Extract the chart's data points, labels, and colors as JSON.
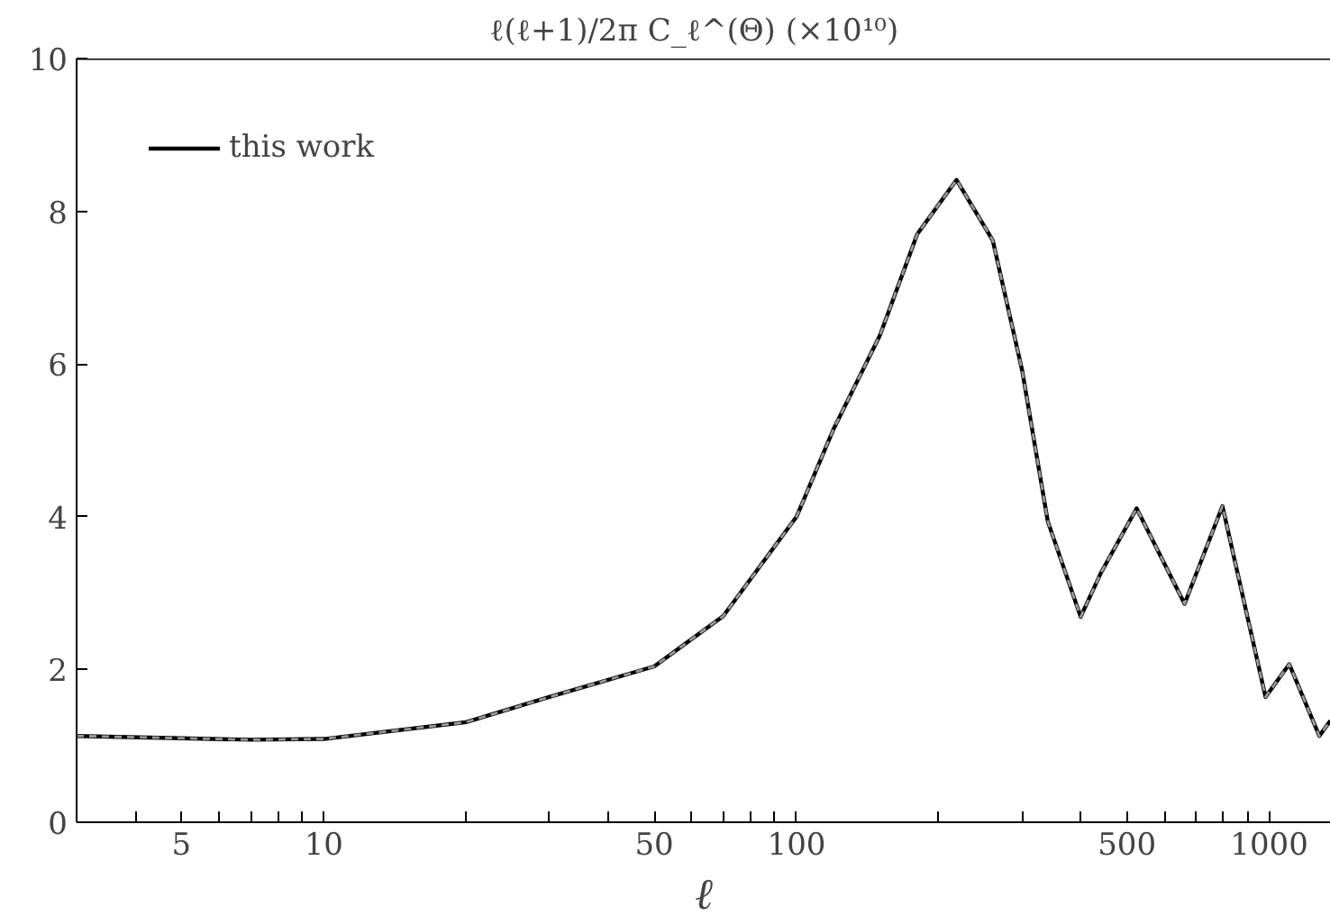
{
  "chart_data": {
    "type": "line",
    "title": "ℓ(ℓ+1)/2π C_ℓ^(Θ)   (×10¹⁰)",
    "xlabel": "ℓ",
    "log": "x",
    "xlim": [
      3,
      1350
    ],
    "ylim": [
      0,
      10
    ],
    "xticks": [
      {
        "value": 4,
        "label": null
      },
      5,
      {
        "value": 6,
        "label": null
      },
      {
        "value": 7,
        "label": null
      },
      {
        "value": 8,
        "label": null
      },
      {
        "value": 9,
        "label": null
      },
      10,
      {
        "value": 20,
        "label": null
      },
      {
        "value": 30,
        "label": null
      },
      {
        "value": 40,
        "label": null
      },
      50,
      {
        "value": 60,
        "label": null
      },
      {
        "value": 70,
        "label": null
      },
      {
        "value": 80,
        "label": null
      },
      {
        "value": 90,
        "label": null
      },
      100,
      {
        "value": 200,
        "label": null
      },
      {
        "value": 300,
        "label": null
      },
      {
        "value": 400,
        "label": null
      },
      500,
      {
        "value": 600,
        "label": null
      },
      {
        "value": 700,
        "label": null
      },
      {
        "value": 800,
        "label": null
      },
      {
        "value": 900,
        "label": null
      },
      1000
    ],
    "yticks": [
      0,
      2,
      4,
      6,
      8,
      10
    ],
    "grid": false,
    "legend": "top left",
    "x": [
      3,
      5,
      7,
      10,
      20,
      30,
      50,
      70,
      100,
      120,
      150,
      180,
      218,
      260,
      300,
      340,
      399,
      440,
      524,
      662,
      796,
      982,
      1102,
      1276,
      1346
    ],
    "series": [
      {
        "name": "this work",
        "color": "#000000",
        "line_style": "solid",
        "values": [
          1.13,
          1.1,
          1.08,
          1.09,
          1.31,
          1.64,
          2.04,
          2.7,
          4.0,
          5.16,
          6.37,
          7.7,
          8.41,
          7.62,
          5.92,
          3.94,
          2.69,
          3.26,
          4.11,
          2.86,
          4.14,
          1.64,
          2.07,
          1.13,
          1.33
        ]
      },
      {
        "color": "#999999",
        "line_style": "dashed",
        "values": [
          1.13,
          1.1,
          1.08,
          1.09,
          1.31,
          1.64,
          2.04,
          2.7,
          4.0,
          5.16,
          6.37,
          7.7,
          8.41,
          7.62,
          5.92,
          3.94,
          2.69,
          3.26,
          4.11,
          2.86,
          4.14,
          1.64,
          2.07,
          1.13,
          1.33
        ]
      }
    ]
  }
}
